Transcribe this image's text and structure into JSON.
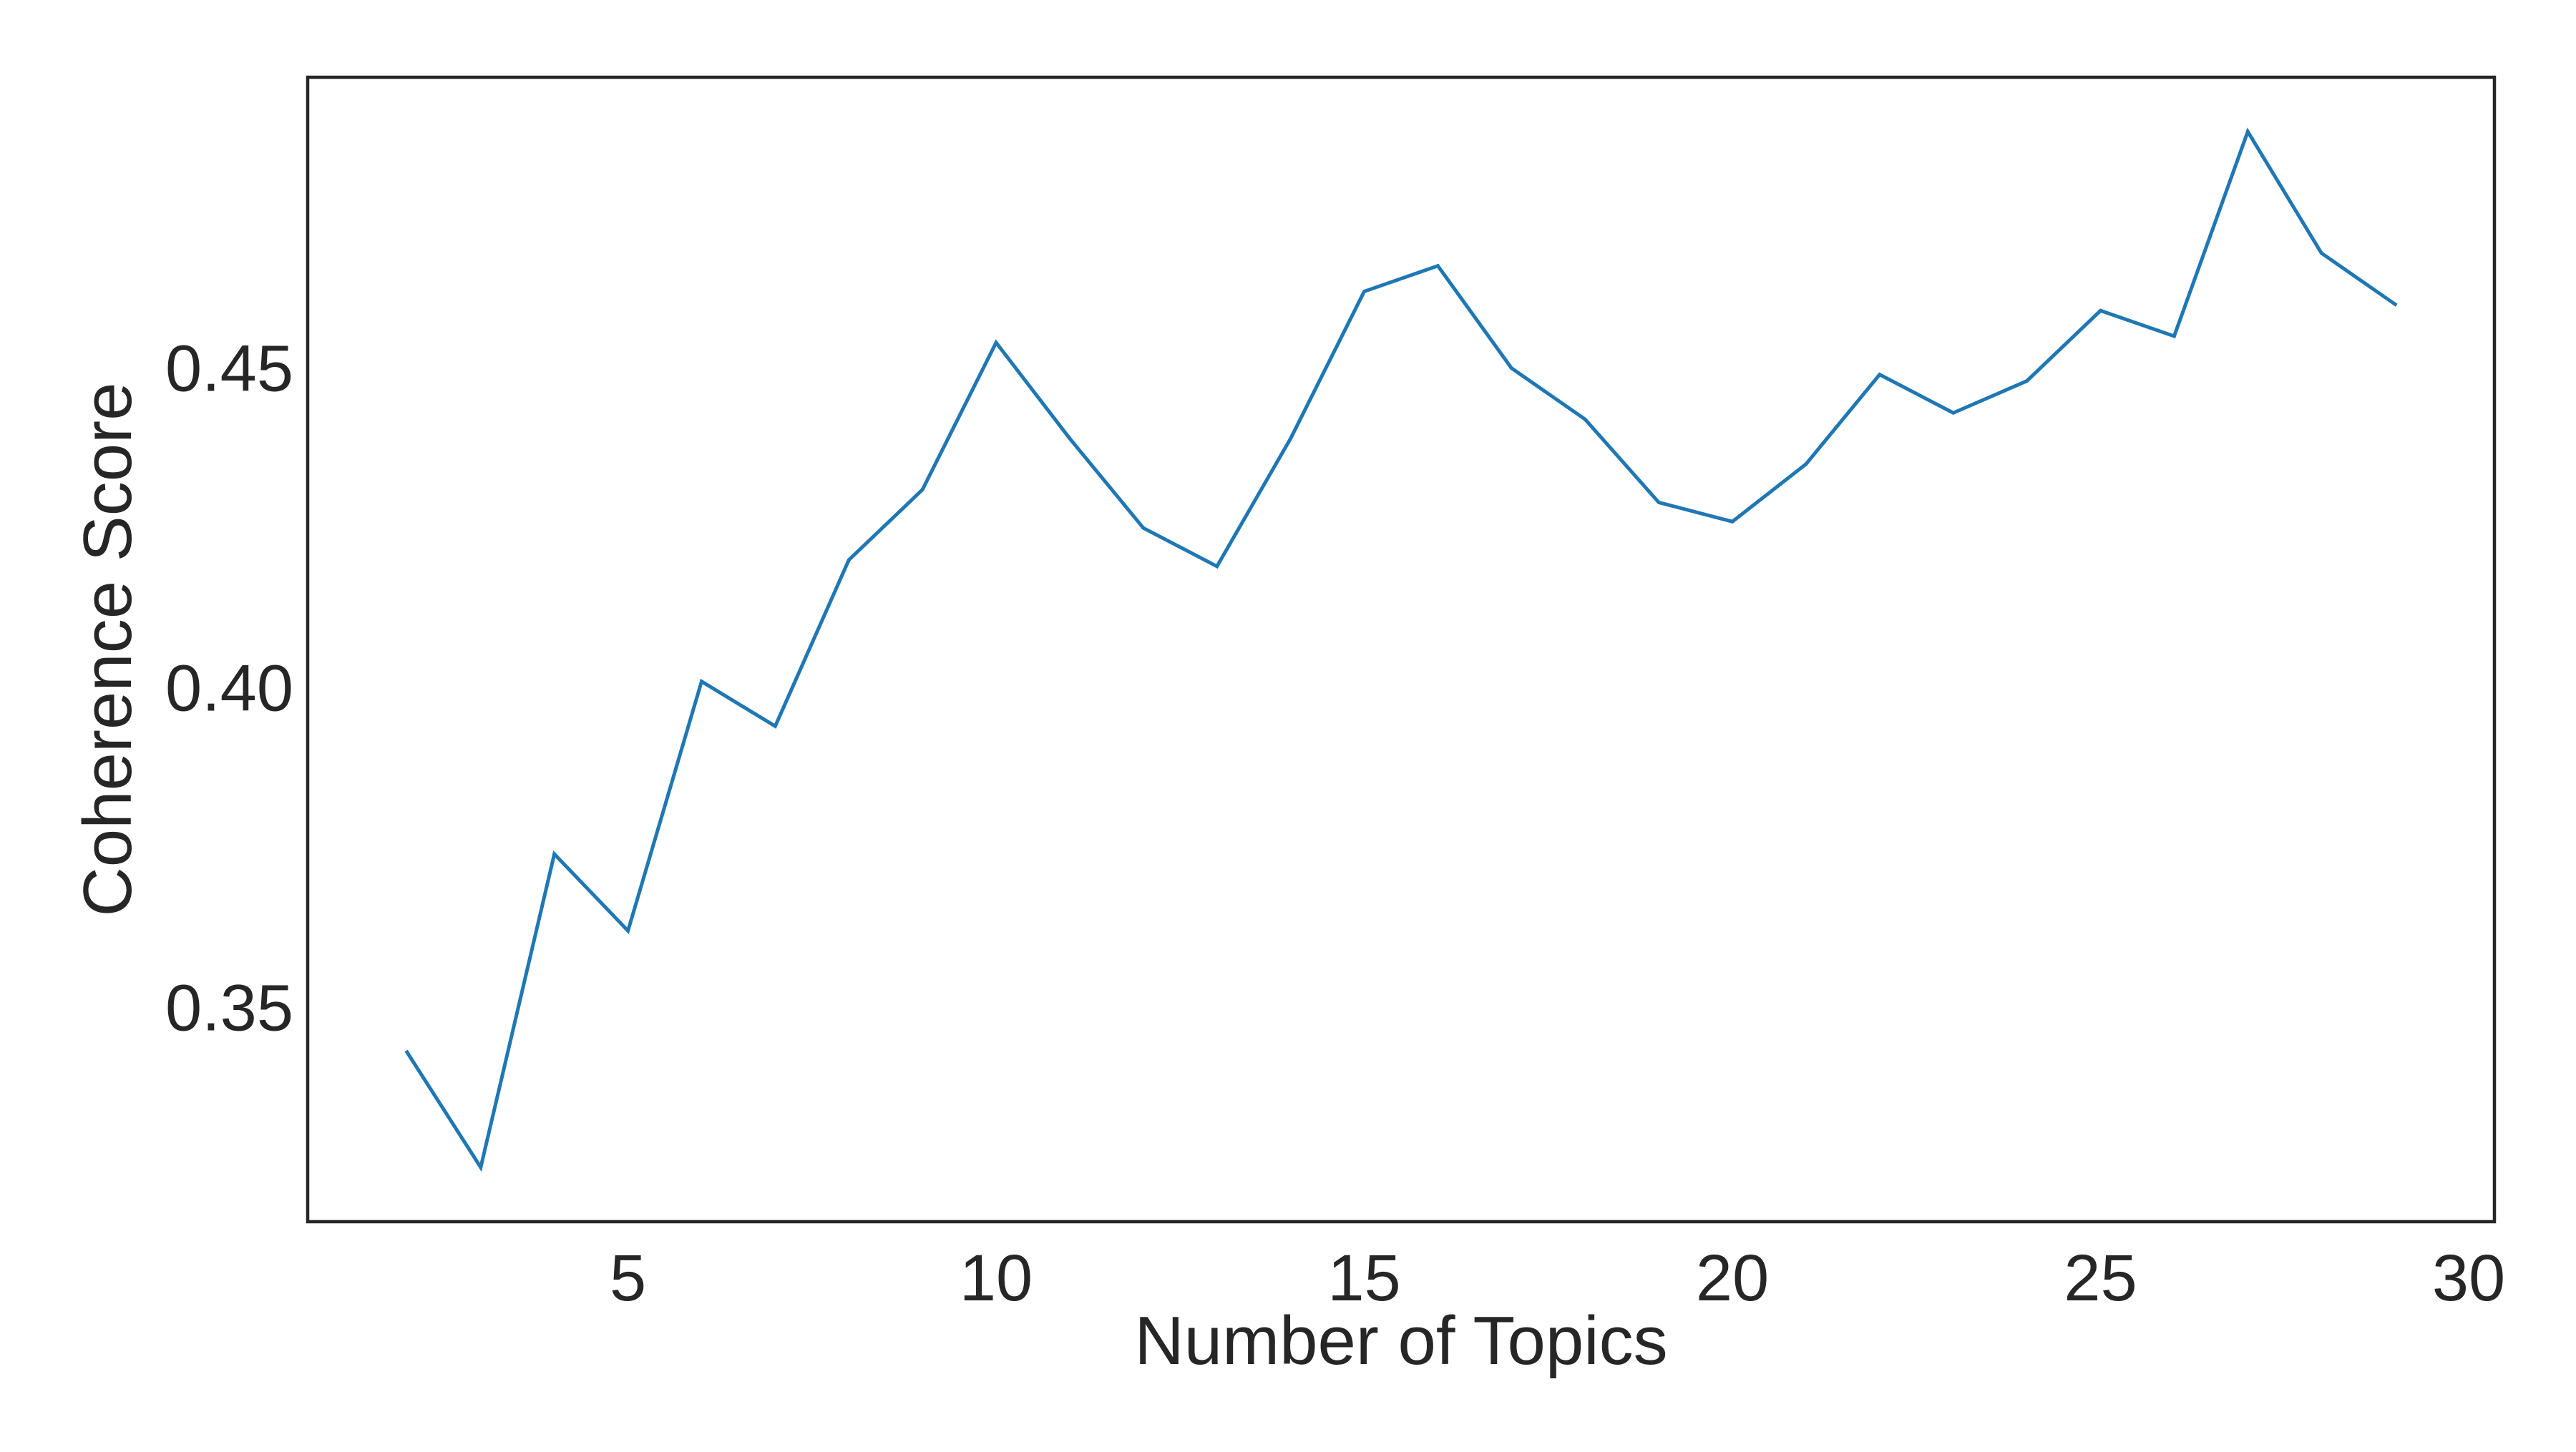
{
  "chart_data": {
    "type": "line",
    "title": "",
    "xlabel": "Number of Topics",
    "ylabel": "Coherence Score",
    "xlim": [
      0.65,
      30.35
    ],
    "ylim": [
      0.3165,
      0.4955
    ],
    "xticks": [
      5,
      10,
      15,
      20,
      25,
      30
    ],
    "xtick_labels": [
      "5",
      "10",
      "15",
      "20",
      "25",
      "30"
    ],
    "yticks": [
      0.35,
      0.4,
      0.45
    ],
    "ytick_labels": [
      "0.35",
      "0.40",
      "0.45"
    ],
    "grid": false,
    "legend": "none",
    "series": [
      {
        "color": "#1f77b4",
        "x": [
          2,
          3,
          4,
          5,
          6,
          7,
          8,
          9,
          10,
          11,
          12,
          13,
          14,
          15,
          16,
          17,
          18,
          19,
          20,
          21,
          22,
          23,
          24,
          25,
          26,
          27,
          28,
          29
        ],
        "y": [
          0.343,
          0.325,
          0.374,
          0.362,
          0.401,
          0.394,
          0.42,
          0.431,
          0.454,
          0.439,
          0.425,
          0.419,
          0.439,
          0.462,
          0.466,
          0.45,
          0.442,
          0.429,
          0.426,
          0.435,
          0.449,
          0.443,
          0.448,
          0.459,
          0.455,
          0.487,
          0.468,
          0.46
        ]
      }
    ]
  }
}
